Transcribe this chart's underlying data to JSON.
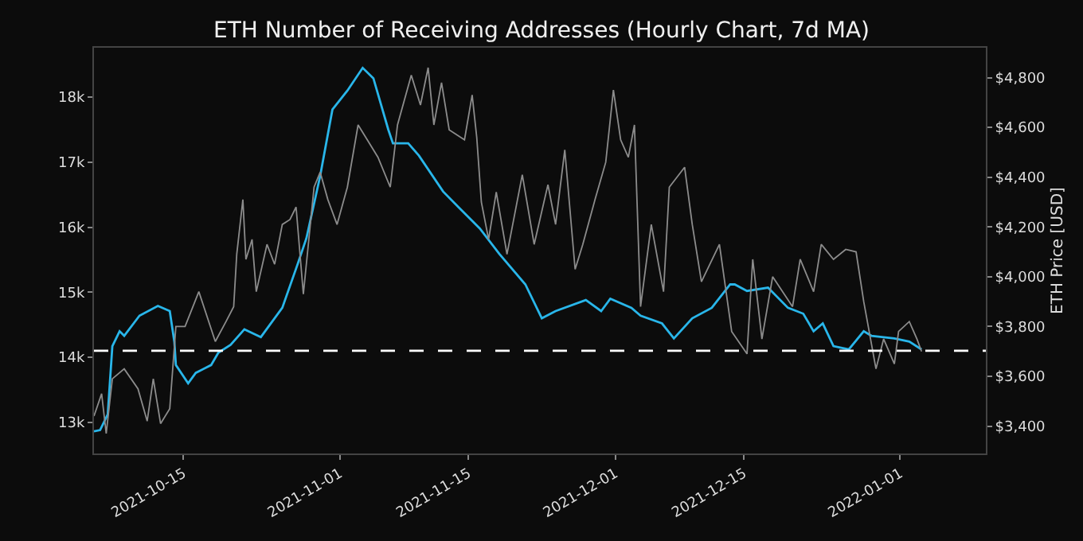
{
  "chart_data": {
    "type": "line",
    "title": "ETH Number of Receiving Addresses (Hourly Chart, 7d MA)",
    "y2label": "ETH Price [USD]",
    "xlim": [
      "2021-10-05T06:00",
      "2022-01-10T08:00"
    ],
    "xticks": [
      "2021-10-15",
      "2021-11-01",
      "2021-11-15",
      "2021-12-01",
      "2021-12-15",
      "2022-01-01"
    ],
    "ylim": [
      12520,
      18760
    ],
    "yticks": [
      {
        "value": 13000,
        "label": "13k"
      },
      {
        "value": 14000,
        "label": "14k"
      },
      {
        "value": 15000,
        "label": "15k"
      },
      {
        "value": 16000,
        "label": "16k"
      },
      {
        "value": 17000,
        "label": "17k"
      },
      {
        "value": 18000,
        "label": "18k"
      }
    ],
    "y2lim": [
      3290,
      4920
    ],
    "y2ticks": [
      {
        "value": 3400,
        "label": "$3,400"
      },
      {
        "value": 3600,
        "label": "$3,600"
      },
      {
        "value": 3800,
        "label": "$3,800"
      },
      {
        "value": 4000,
        "label": "$4,000"
      },
      {
        "value": 4200,
        "label": "$4,200"
      },
      {
        "value": 4400,
        "label": "$4,400"
      },
      {
        "value": 4600,
        "label": "$4,600"
      },
      {
        "value": 4800,
        "label": "$4,800"
      }
    ],
    "grid": false,
    "line_style": "solid",
    "marker": "none",
    "ref_lines": [
      {
        "axis": "y",
        "value": 14100,
        "label": null,
        "color": "#ffffff",
        "line_style": "dashed"
      }
    ],
    "series": [
      {
        "axis": "y2",
        "color": "#8c8c8c",
        "x": [
          "2021-10-05T06:00",
          "2021-10-06T02:00",
          "2021-10-06T14:00",
          "2021-10-07T06:00",
          "2021-10-08T13:00",
          "2021-10-10T01:00",
          "2021-10-11T01:00",
          "2021-10-11T17:00",
          "2021-10-12T12:00",
          "2021-10-13T12:00",
          "2021-10-14T04:00",
          "2021-10-15T04:00",
          "2021-10-16T16:00",
          "2021-10-18T11:00",
          "2021-10-19T15:00",
          "2021-10-20T11:00",
          "2021-10-20T19:00",
          "2021-10-21T11:00",
          "2021-10-21T19:00",
          "2021-10-22T11:00",
          "2021-10-22T22:00",
          "2021-10-24T02:00",
          "2021-10-24T22:00",
          "2021-10-25T18:00",
          "2021-10-26T14:00",
          "2021-10-27T06:00",
          "2021-10-28T01:00",
          "2021-10-29T05:00",
          "2021-10-29T21:00",
          "2021-10-30T17:00",
          "2021-10-31T17:00",
          "2021-11-01T20:00",
          "2021-11-03T00:00",
          "2021-11-04T00:00",
          "2021-11-05T04:00",
          "2021-11-06T12:00",
          "2021-11-07T07:00",
          "2021-11-08T19:00",
          "2021-11-09T19:00",
          "2021-11-10T15:00",
          "2021-11-11T06:00",
          "2021-11-12T02:00",
          "2021-11-12T22:00",
          "2021-11-14T14:00",
          "2021-11-15T10:00",
          "2021-11-15T22:00",
          "2021-11-16T10:00",
          "2021-11-17T05:00",
          "2021-11-18T01:00",
          "2021-11-19T05:00",
          "2021-11-20T21:00",
          "2021-11-22T04:00",
          "2021-11-23T16:00",
          "2021-11-24T12:00",
          "2021-11-25T12:00",
          "2021-11-26T15:00",
          "2021-11-27T11:00",
          "2021-11-28T19:00",
          "2021-11-29T23:00",
          "2021-11-30T19:00",
          "2021-12-01T14:00",
          "2021-12-02T10:00",
          "2021-12-03T02:00",
          "2021-12-03T18:00",
          "2021-12-04T22:00",
          "2021-12-06T06:00",
          "2021-12-06T21:00",
          "2021-12-08T13:00",
          "2021-12-09T09:00",
          "2021-12-10T09:00",
          "2021-12-12T08:00",
          "2021-12-13T16:00",
          "2021-12-15T08:00",
          "2021-12-15T23:00",
          "2021-12-16T23:00",
          "2021-12-18T03:00",
          "2021-12-20T07:00",
          "2021-12-21T03:00",
          "2021-12-22T14:00",
          "2021-12-23T10:00",
          "2021-12-24T18:00",
          "2021-12-26T02:00",
          "2021-12-27T05:00",
          "2021-12-28T01:00",
          "2021-12-29T09:00",
          "2021-12-30T05:00",
          "2021-12-31T09:00",
          "2021-12-31T20:00",
          "2022-01-02T00:00",
          "2022-01-02T20:00",
          "2022-01-03T08:00"
        ],
        "values": [
          3440,
          3530,
          3370,
          3590,
          3630,
          3550,
          3420,
          3590,
          3410,
          3470,
          3800,
          3800,
          3940,
          3740,
          3820,
          3880,
          4090,
          4310,
          4070,
          4150,
          3940,
          4130,
          4050,
          4210,
          4230,
          4280,
          3930,
          4360,
          4420,
          4310,
          4210,
          4360,
          4610,
          4550,
          4480,
          4360,
          4610,
          4810,
          4690,
          4840,
          4610,
          4780,
          4590,
          4550,
          4730,
          4560,
          4300,
          4150,
          4340,
          4090,
          4410,
          4130,
          4370,
          4210,
          4510,
          4030,
          4130,
          4310,
          4460,
          4750,
          4550,
          4480,
          4610,
          3880,
          4210,
          3940,
          4360,
          4440,
          4210,
          3980,
          4130,
          3780,
          3690,
          4070,
          3750,
          4000,
          3880,
          4070,
          3940,
          4130,
          4070,
          4110,
          4100,
          3900,
          3630,
          3750,
          3650,
          3780,
          3820,
          3750,
          3700
        ]
      },
      {
        "color": "#29b6ea",
        "x": [
          "2021-10-05T06:00",
          "2021-10-05T22:00",
          "2021-10-06T18:00",
          "2021-10-07T06:00",
          "2021-10-08T01:00",
          "2021-10-08T13:00",
          "2021-10-10T05:00",
          "2021-10-12T05:00",
          "2021-10-13T12:00",
          "2021-10-14T00:00",
          "2021-10-14T04:00",
          "2021-10-15T12:00",
          "2021-10-16T08:00",
          "2021-10-18T00:00",
          "2021-10-18T19:00",
          "2021-10-20T03:00",
          "2021-10-21T15:00",
          "2021-10-23T10:00",
          "2021-10-25T18:00",
          "2021-10-27T10:00",
          "2021-10-28T09:00",
          "2021-10-29T21:00",
          "2021-10-31T05:00",
          "2021-11-01T20:00",
          "2021-11-03T12:00",
          "2021-11-04T16:00",
          "2021-11-06T07:00",
          "2021-11-06T19:00",
          "2021-11-08T11:00",
          "2021-11-09T15:00",
          "2021-11-12T06:00",
          "2021-11-13T22:00",
          "2021-11-16T06:00",
          "2021-11-18T09:00",
          "2021-11-21T05:00",
          "2021-11-23T00:00",
          "2021-11-24T12:00",
          "2021-11-27T19:00",
          "2021-11-29T11:00",
          "2021-11-30T11:00",
          "2021-12-02T18:00",
          "2021-12-03T18:00",
          "2021-12-06T02:00",
          "2021-12-07T09:00",
          "2021-12-09T09:00",
          "2021-12-11T12:00",
          "2021-12-13T12:00",
          "2021-12-14T00:00",
          "2021-12-15T08:00",
          "2021-12-17T15:00",
          "2021-12-19T19:00",
          "2021-12-21T11:00",
          "2021-12-22T14:00",
          "2021-12-23T14:00",
          "2021-12-24T18:00",
          "2021-12-26T10:00",
          "2021-12-28T01:00",
          "2021-12-28T21:00",
          "2021-12-31T09:00",
          "2022-01-02T00:00",
          "2022-01-03T08:00"
        ],
        "values": [
          12860,
          12880,
          13120,
          14170,
          14400,
          14330,
          14640,
          14790,
          14710,
          14240,
          13880,
          13600,
          13760,
          13880,
          14070,
          14190,
          14430,
          14310,
          14760,
          15430,
          15830,
          16790,
          17810,
          18100,
          18450,
          18290,
          17500,
          17290,
          17290,
          17100,
          16550,
          16310,
          15980,
          15590,
          15120,
          14600,
          14710,
          14880,
          14710,
          14900,
          14760,
          14640,
          14520,
          14290,
          14600,
          14760,
          15120,
          15120,
          15020,
          15070,
          14760,
          14670,
          14400,
          14520,
          14170,
          14120,
          14400,
          14330,
          14290,
          14240,
          14120
        ]
      }
    ]
  }
}
